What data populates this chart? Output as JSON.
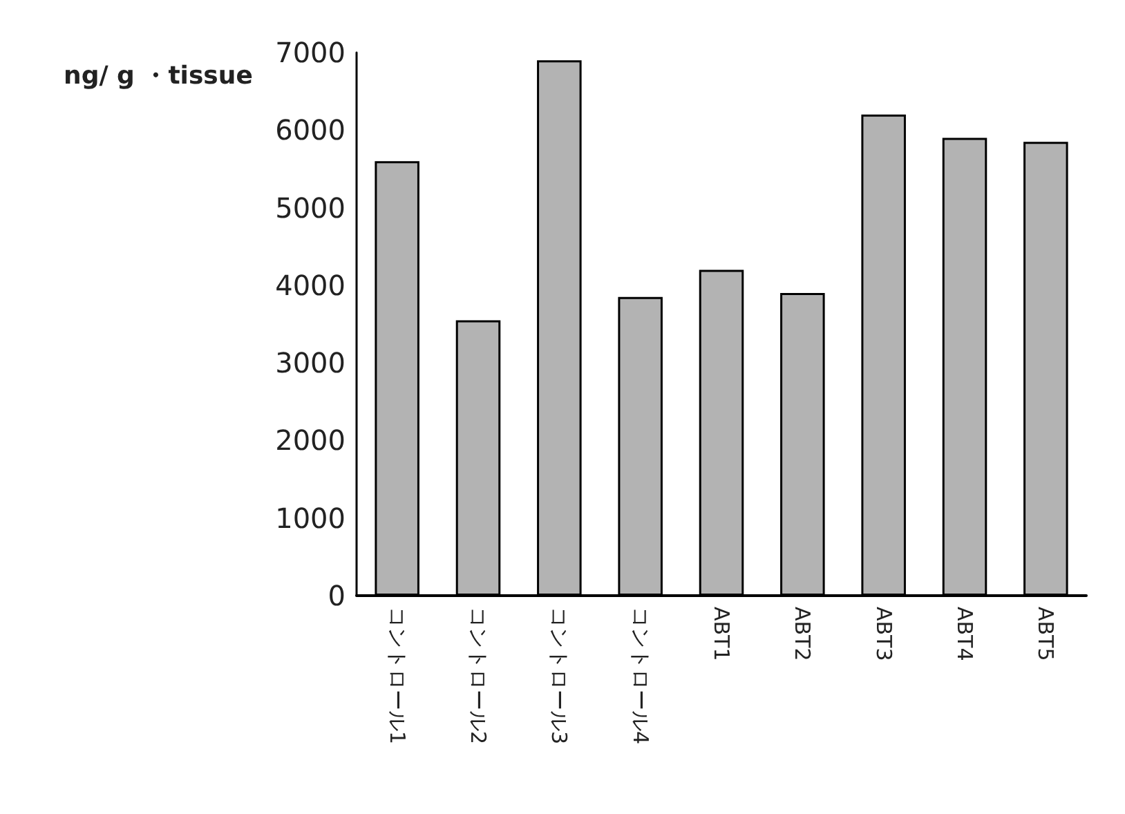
{
  "chart_data": {
    "type": "bar",
    "ylabel": "ng/ g ・tissue",
    "categories": [
      "コントロール1",
      "コントロール2",
      "コントロール3",
      "コントロール4",
      "ABT1",
      "ABT2",
      "ABT3",
      "ABT4",
      "ABT5"
    ],
    "values": [
      5600,
      3550,
      6900,
      3850,
      4200,
      3900,
      6200,
      5900,
      5850
    ],
    "color": "#b3b3b3",
    "ylim": [
      0,
      7000
    ],
    "yticks": [
      0,
      1000,
      2000,
      3000,
      4000,
      5000,
      6000,
      7000
    ],
    "grid": false
  }
}
